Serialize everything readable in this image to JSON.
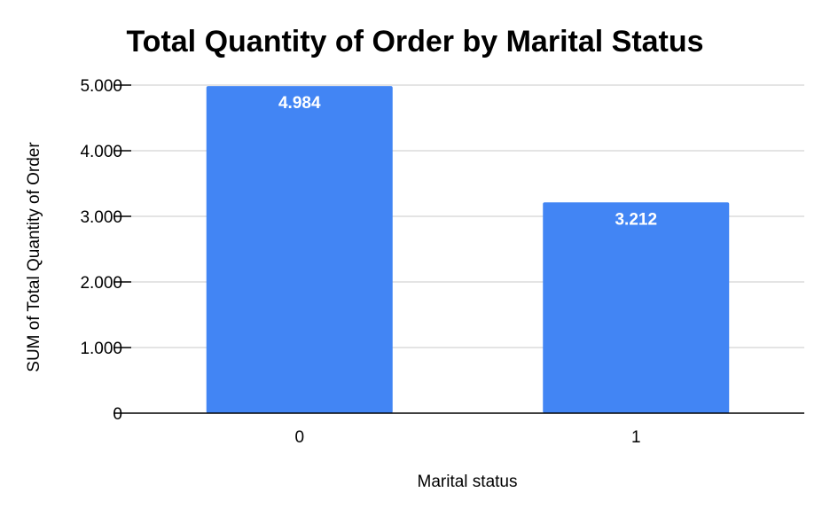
{
  "chart_data": {
    "type": "bar",
    "title": "Total Quantity of Order by Marital Status",
    "xlabel": "Marital status",
    "ylabel": "SUM of Total Quantity of Order",
    "categories": [
      "0",
      "1"
    ],
    "values": [
      4984,
      3212
    ],
    "data_labels": [
      "4.984",
      "3.212"
    ],
    "ylim": [
      0,
      5000
    ],
    "yticks": [
      0,
      1000,
      2000,
      3000,
      4000,
      5000
    ],
    "ytick_labels": [
      "0",
      "1.000",
      "2.000",
      "3.000",
      "4.000",
      "5.000"
    ],
    "bar_color": "#4285f4",
    "grid": true,
    "legend": "none"
  }
}
